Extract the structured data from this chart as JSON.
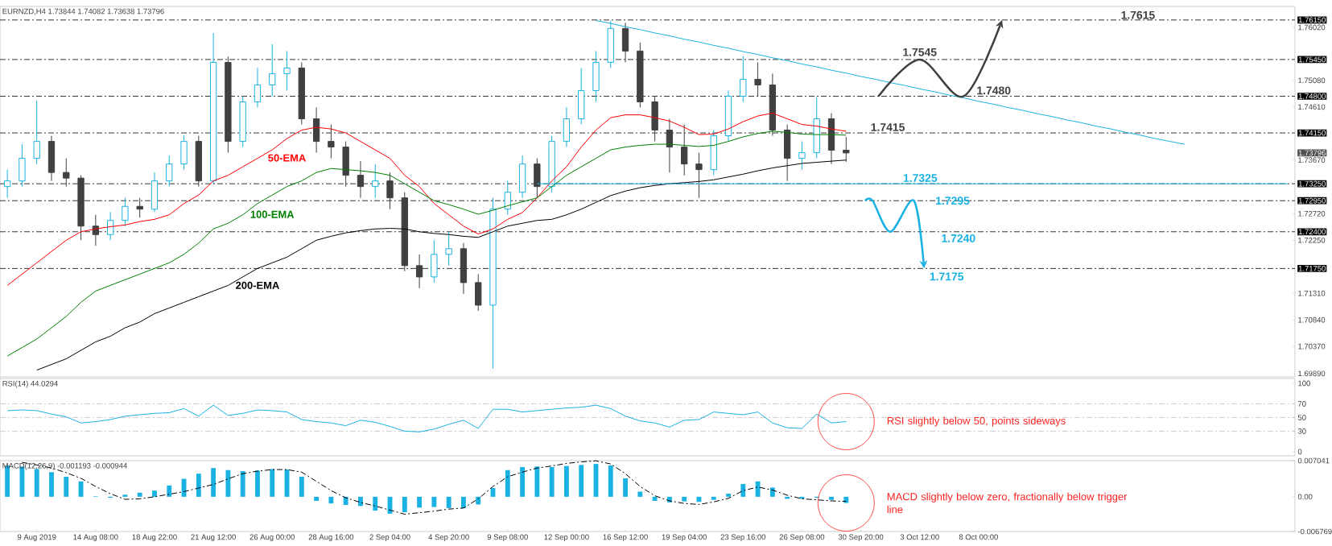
{
  "chart_data": [
    {
      "type": "candlestick",
      "title": "EURNZD,H4 1.73844 1.74082 1.73638 1.73796",
      "categories": [
        null,
        null,
        null,
        null,
        null,
        null,
        null,
        null,
        null,
        null,
        null,
        null,
        null,
        null,
        null,
        null,
        null,
        null,
        null,
        null,
        null,
        null,
        null,
        null,
        null,
        null,
        null,
        null,
        null,
        null,
        null,
        null,
        null,
        null,
        null,
        null,
        null,
        null,
        null,
        null,
        null,
        null,
        null,
        null,
        null,
        null,
        null,
        null,
        null,
        null,
        null,
        null,
        null,
        null,
        null,
        null,
        null,
        null,
        null,
        null,
        null,
        null,
        null,
        null,
        null,
        null,
        null,
        null,
        null,
        null,
        null,
        null,
        null,
        null,
        null,
        null,
        null,
        null,
        null,
        null,
        null,
        null,
        null,
        null,
        null,
        null,
        null,
        null
      ],
      "ohlc": [
        [
          1.732,
          1.735,
          1.73,
          1.733
        ],
        [
          1.733,
          1.7395,
          1.732,
          1.737
        ],
        [
          1.737,
          1.7472,
          1.736,
          1.74
        ],
        [
          1.74,
          1.741,
          1.733,
          1.7345
        ],
        [
          1.7345,
          1.737,
          1.732,
          1.7335
        ],
        [
          1.7335,
          1.734,
          1.7225,
          1.725
        ],
        [
          1.725,
          1.727,
          1.7215,
          1.7235
        ],
        [
          1.7235,
          1.7275,
          1.7225,
          1.726
        ],
        [
          1.726,
          1.73,
          1.725,
          1.7285
        ],
        [
          1.7285,
          1.73,
          1.7265,
          1.728
        ],
        [
          1.728,
          1.7345,
          1.7275,
          1.733
        ],
        [
          1.733,
          1.7375,
          1.732,
          1.736
        ],
        [
          1.736,
          1.7411,
          1.735,
          1.74
        ],
        [
          1.74,
          1.741,
          1.732,
          1.733
        ],
        [
          1.733,
          1.7592,
          1.7325,
          1.754
        ],
        [
          1.754,
          1.755,
          1.738,
          1.74
        ],
        [
          1.74,
          1.748,
          1.739,
          1.747
        ],
        [
          1.747,
          1.753,
          1.746,
          1.75
        ],
        [
          1.75,
          1.7572,
          1.748,
          1.752
        ],
        [
          1.752,
          1.756,
          1.749,
          1.753
        ],
        [
          1.753,
          1.754,
          1.743,
          1.744
        ],
        [
          1.744,
          1.746,
          1.738,
          1.74
        ],
        [
          1.74,
          1.743,
          1.737,
          1.739
        ],
        [
          1.739,
          1.74,
          1.732,
          1.734
        ],
        [
          1.734,
          1.7365,
          1.73,
          1.732
        ],
        [
          1.732,
          1.736,
          1.73,
          1.733
        ],
        [
          1.733,
          1.7345,
          1.728,
          1.73
        ],
        [
          1.73,
          1.731,
          1.717,
          1.718
        ],
        [
          1.718,
          1.72,
          1.714,
          1.716
        ],
        [
          1.716,
          1.7225,
          1.715,
          1.72
        ],
        [
          1.72,
          1.724,
          1.718,
          1.721
        ],
        [
          1.721,
          1.722,
          1.713,
          1.715
        ],
        [
          1.715,
          1.7165,
          1.71,
          1.711
        ],
        [
          1.711,
          1.73,
          1.6998,
          1.728
        ],
        [
          1.728,
          1.733,
          1.727,
          1.731
        ],
        [
          1.731,
          1.7375,
          1.73,
          1.736
        ],
        [
          1.736,
          1.737,
          1.73,
          1.732
        ],
        [
          1.732,
          1.741,
          1.731,
          1.74
        ],
        [
          1.74,
          1.746,
          1.739,
          1.744
        ],
        [
          1.744,
          1.753,
          1.743,
          1.749
        ],
        [
          1.749,
          1.756,
          1.747,
          1.754
        ],
        [
          1.754,
          1.7614,
          1.753,
          1.76
        ],
        [
          1.76,
          1.761,
          1.754,
          1.756
        ],
        [
          1.756,
          1.7575,
          1.746,
          1.747
        ],
        [
          1.747,
          1.748,
          1.74,
          1.742
        ],
        [
          1.742,
          1.744,
          1.7345,
          1.739
        ],
        [
          1.739,
          1.743,
          1.734,
          1.736
        ],
        [
          1.736,
          1.738,
          1.73,
          1.735
        ],
        [
          1.735,
          1.742,
          1.734,
          1.741
        ],
        [
          1.741,
          1.749,
          1.74,
          1.748
        ],
        [
          1.748,
          1.7551,
          1.747,
          1.751
        ],
        [
          1.751,
          1.754,
          1.748,
          1.75
        ],
        [
          1.75,
          1.752,
          1.741,
          1.742
        ],
        [
          1.742,
          1.743,
          1.733,
          1.737
        ],
        [
          1.737,
          1.74,
          1.735,
          1.738
        ],
        [
          1.738,
          1.7478,
          1.737,
          1.744
        ],
        [
          1.744,
          1.745,
          1.736,
          1.73844
        ],
        [
          1.73844,
          1.74082,
          1.73638,
          1.73796
        ],
        null,
        null,
        null,
        null,
        null,
        null,
        null,
        null,
        null,
        null,
        null,
        null,
        null,
        null,
        null,
        null,
        null,
        null,
        null,
        null,
        null,
        null,
        null,
        null,
        null,
        null,
        null,
        null,
        null,
        null
      ],
      "series": [
        {
          "name": "50-EMA",
          "type": "line",
          "color": "#ff0000",
          "values": [
            1.7145,
            1.7165,
            1.7185,
            1.7205,
            1.7225,
            1.724,
            1.7245,
            1.7249,
            1.7252,
            1.7258,
            1.7262,
            1.727,
            1.729,
            1.7305,
            1.733,
            1.734,
            1.7355,
            1.737,
            1.7385,
            1.7405,
            1.742,
            1.7425,
            1.7422,
            1.7415,
            1.74,
            1.7385,
            1.737,
            1.734,
            1.732,
            1.729,
            1.727,
            1.725,
            1.7236,
            1.7245,
            1.7262,
            1.7274,
            1.73,
            1.733,
            1.7355,
            1.739,
            1.742,
            1.7442,
            1.7447,
            1.7447,
            1.7442,
            1.7436,
            1.7425,
            1.7412,
            1.7413,
            1.7422,
            1.7435,
            1.7445,
            1.745,
            1.744,
            1.743,
            1.7427,
            1.7422,
            1.7418,
            null,
            null,
            null,
            null,
            null,
            null,
            null,
            null,
            null,
            null,
            null,
            null,
            null,
            null,
            null,
            null,
            null,
            null,
            null,
            null,
            null,
            null,
            null,
            null,
            null,
            null,
            null,
            null,
            null,
            null
          ]
        },
        {
          "name": "100-EMA",
          "type": "line",
          "color": "#008000",
          "values": [
            1.702,
            1.7035,
            1.705,
            1.707,
            1.709,
            1.7115,
            1.7135,
            1.7145,
            1.7155,
            1.7165,
            1.7175,
            1.7185,
            1.72,
            1.722,
            1.7245,
            1.7255,
            1.727,
            1.729,
            1.7305,
            1.732,
            1.733,
            1.7345,
            1.7352,
            1.735,
            1.7348,
            1.7345,
            1.734,
            1.7325,
            1.731,
            1.7295,
            1.7288,
            1.728,
            1.7271,
            1.7278,
            1.7286,
            1.7293,
            1.73,
            1.732,
            1.734,
            1.7355,
            1.737,
            1.7385,
            1.739,
            1.7393,
            1.7395,
            1.7395,
            1.7393,
            1.7391,
            1.7393,
            1.74,
            1.7408,
            1.7414,
            1.7418,
            1.7416,
            1.7413,
            1.7412,
            1.7412,
            1.7411,
            null,
            null,
            null,
            null,
            null,
            null,
            null,
            null,
            null,
            null,
            null,
            null,
            null,
            null,
            null,
            null,
            null,
            null,
            null,
            null,
            null,
            null,
            null,
            null,
            null,
            null,
            null,
            null,
            null,
            null
          ]
        },
        {
          "name": "200-EMA",
          "type": "line",
          "color": "#000000",
          "values": [
            null,
            null,
            1.6995,
            1.7005,
            1.7015,
            1.703,
            1.7045,
            1.7055,
            1.707,
            1.708,
            1.7095,
            1.7105,
            1.7115,
            1.7125,
            1.7135,
            1.7145,
            1.716,
            1.7175,
            1.7185,
            1.7195,
            1.721,
            1.7225,
            1.7232,
            1.7238,
            1.7242,
            1.7245,
            1.7246,
            1.7245,
            1.724,
            1.7237,
            1.7235,
            1.7232,
            1.723,
            1.724,
            1.725,
            1.7255,
            1.726,
            1.7262,
            1.727,
            1.728,
            1.7292,
            1.7304,
            1.7312,
            1.7318,
            1.7322,
            1.7325,
            1.7327,
            1.7329,
            1.7332,
            1.7337,
            1.7342,
            1.7348,
            1.7353,
            1.7357,
            1.7361,
            1.7363,
            1.7365,
            1.7367,
            null,
            null,
            null,
            null,
            null,
            null,
            null,
            null,
            null,
            null,
            null,
            null,
            null,
            null,
            null,
            null,
            null,
            null,
            null,
            null,
            null,
            null,
            null,
            null,
            null,
            null,
            null,
            null,
            null,
            null
          ]
        },
        {
          "type": "line",
          "color": "#1ab2e3",
          "values": [
            null,
            null,
            null,
            null,
            null,
            null,
            null,
            null,
            null,
            null,
            null,
            null,
            null,
            null,
            null,
            null,
            null,
            null,
            null,
            null,
            null,
            null,
            null,
            null,
            null,
            null,
            null,
            null,
            null,
            null,
            null,
            null,
            null,
            null,
            null,
            null,
            null,
            null,
            null,
            null,
            1.7614,
            1.7609,
            1.7603,
            1.7598,
            1.7592,
            1.7587,
            1.7581,
            1.7576,
            1.757,
            1.7565,
            1.7559,
            1.7554,
            1.7548,
            1.7543,
            1.7537,
            1.7532,
            1.7526,
            1.7521,
            1.7515,
            1.751,
            1.7504,
            1.7499,
            1.7493,
            1.7488,
            1.7482,
            1.7477,
            1.7471,
            1.7466,
            1.746,
            1.7455,
            1.7449,
            1.7444,
            1.7438,
            1.7433,
            1.7427,
            1.7422,
            1.7416,
            1.7411,
            1.7405,
            1.74,
            1.7395,
            null,
            null,
            null,
            null,
            null,
            null,
            null
          ]
        },
        {
          "type": "line",
          "color": "#1ab2e3",
          "values": [
            null,
            null,
            null,
            null,
            null,
            null,
            null,
            null,
            null,
            null,
            null,
            null,
            null,
            null,
            null,
            null,
            null,
            null,
            null,
            null,
            null,
            null,
            null,
            null,
            null,
            null,
            null,
            null,
            null,
            null,
            null,
            null,
            null,
            null,
            null,
            null,
            1.7325,
            1.7325,
            1.7325,
            1.7325,
            1.7325,
            1.7325,
            1.7325,
            1.7325,
            1.7325,
            1.7325,
            1.7325,
            1.7325,
            1.7325,
            1.7325,
            1.7325,
            1.7325,
            1.7325,
            1.7325,
            1.7325,
            1.7325,
            1.7325,
            1.7325,
            1.7325,
            1.7325,
            1.7325,
            1.7325,
            1.7325,
            1.7325,
            1.7325,
            1.7325,
            1.7325,
            1.7325,
            1.7325,
            1.7325,
            1.7325,
            1.7325,
            1.7325,
            1.7325,
            1.7325,
            1.7325,
            1.7325,
            1.7325,
            1.7325,
            1.7325,
            1.7325,
            1.7325,
            1.7325,
            1.7325,
            1.7325,
            1.7325,
            1.7325,
            1.7325
          ]
        }
      ],
      "ref_lines": [
        {
          "axis": "y",
          "value": 1.7615,
          "label": "1.76150",
          "color": "#000000",
          "line_style": "dashed"
        },
        {
          "axis": "y",
          "value": 1.7545,
          "label": "1.75450",
          "color": "#000000",
          "line_style": "dashed"
        },
        {
          "axis": "y",
          "value": 1.748,
          "label": "1.74800",
          "color": "#000000",
          "line_style": "dashed"
        },
        {
          "axis": "y",
          "value": 1.7415,
          "label": "1.74150",
          "color": "#000000",
          "line_style": "dashed"
        },
        {
          "axis": "y",
          "value": 1.7325,
          "label": "1.73250",
          "color": "#000000",
          "line_style": "dashed"
        },
        {
          "axis": "y",
          "value": 1.7295,
          "label": "1.72950",
          "color": "#000000",
          "line_style": "dashed"
        },
        {
          "axis": "y",
          "value": 1.724,
          "label": "1.72400",
          "color": "#000000",
          "line_style": "dashed"
        },
        {
          "axis": "y",
          "value": 1.7175,
          "label": "1.71750",
          "color": "#000000",
          "line_style": "dashed"
        }
      ],
      "annotations": [
        {
          "text": "1.7615",
          "y": 1.7615
        },
        {
          "text": "1.7545",
          "y": 1.7545
        },
        {
          "text": "1.7480",
          "y": 1.748
        },
        {
          "text": "1.7415",
          "y": 1.7415
        },
        {
          "text": "1.7325",
          "y": 1.7325
        },
        {
          "text": "1.7295",
          "y": 1.7295
        },
        {
          "text": "1.7240",
          "y": 1.724
        },
        {
          "text": "1.7175",
          "y": 1.7175
        },
        "1.73796"
      ],
      "ylim": [
        1.6983,
        1.7639
      ],
      "yticks": [
        {
          "value": 1.6989,
          "label": "1.69890"
        },
        {
          "value": 1.7037,
          "label": "1.70370"
        },
        {
          "value": 1.7084,
          "label": "1.70840"
        },
        {
          "value": 1.7131,
          "label": "1.71310"
        },
        {
          "value": 1.7225,
          "label": "1.72250"
        },
        {
          "value": 1.7272,
          "label": "1.72720"
        },
        {
          "value": 1.7367,
          "label": "1.73670"
        },
        {
          "value": 1.7461,
          "label": "1.74610"
        },
        {
          "value": 1.7508,
          "label": "1.75080"
        },
        {
          "value": 1.7602,
          "label": "1.76020"
        }
      ]
    },
    {
      "type": "line",
      "title": "RSI(14) 44.0294",
      "color": "#1ab2e3",
      "categories": [
        null,
        null,
        null,
        null,
        null,
        null,
        null,
        null,
        null,
        null,
        null,
        null,
        null,
        null,
        null,
        null,
        null,
        null,
        null,
        null,
        null,
        null,
        null,
        null,
        null,
        null,
        null,
        null,
        null,
        null,
        null,
        null,
        null,
        null,
        null,
        null,
        null,
        null,
        null,
        null,
        null,
        null,
        null,
        null,
        null,
        null,
        null,
        null,
        null,
        null,
        null,
        null,
        null,
        null,
        null,
        null,
        null,
        null,
        null,
        null,
        null,
        null,
        null,
        null,
        null,
        null,
        null,
        null,
        null,
        null,
        null,
        null,
        null,
        null,
        null,
        null,
        null,
        null,
        null,
        null,
        null,
        null,
        null,
        null,
        null,
        null,
        null,
        null
      ],
      "values": [
        60,
        61,
        60,
        55,
        51,
        42,
        44,
        47,
        52,
        54,
        56,
        57,
        63,
        52,
        68,
        53,
        56,
        61,
        60,
        58,
        47,
        44,
        42,
        38,
        46,
        43,
        37,
        30,
        29,
        33,
        40,
        46,
        34,
        62,
        62,
        58,
        60,
        62,
        64,
        65,
        68,
        63,
        52,
        45,
        42,
        36,
        46,
        47,
        58,
        56,
        54,
        58,
        42,
        35,
        34,
        55,
        42,
        44,
        null,
        null,
        null,
        null,
        null,
        null,
        null,
        null,
        null,
        null,
        null,
        null,
        null,
        null,
        null,
        null,
        null,
        null,
        null,
        null,
        null,
        null,
        null,
        null,
        null,
        null,
        null,
        null,
        null,
        null
      ],
      "ref_lines": [
        {
          "axis": "y",
          "value": 70,
          "color": "#c0c0c0",
          "line_style": "dashed"
        },
        {
          "axis": "y",
          "value": 50,
          "color": "#c0c0c0",
          "line_style": "dashed"
        },
        {
          "axis": "y",
          "value": 30,
          "color": "#c0c0c0",
          "line_style": "dashed"
        }
      ],
      "annotations": [
        "RSI slightly below 50, points sideways"
      ],
      "ylim": [
        -6,
        107
      ],
      "yticks": [
        0,
        30,
        50,
        70,
        100
      ]
    },
    {
      "type": "bar",
      "title": "MACD(12,26,9) -0.001193 -0.000944",
      "categories": [
        null,
        null,
        "9 Aug 2019",
        null,
        null,
        null,
        "14 Aug 08:00",
        null,
        null,
        null,
        "18 Aug 22:00",
        null,
        null,
        null,
        "21 Aug 12:00",
        null,
        null,
        null,
        "26 Aug 00:00",
        null,
        null,
        null,
        "28 Aug 16:00",
        null,
        null,
        null,
        "2 Sep 04:00",
        null,
        null,
        null,
        "4 Sep 20:00",
        null,
        null,
        null,
        "9 Sep 08:00",
        null,
        null,
        null,
        "12 Sep 00:00",
        null,
        null,
        null,
        "16 Sep 12:00",
        null,
        null,
        null,
        "19 Sep 04:00",
        null,
        null,
        null,
        "23 Sep 16:00",
        null,
        null,
        null,
        "26 Sep 08:00",
        null,
        null,
        null,
        "30 Sep 20:00",
        null,
        null,
        null,
        "3 Oct 12:00",
        null,
        null,
        null,
        "8 Oct 00:00",
        null,
        null,
        null,
        null,
        null,
        null,
        null,
        null,
        null,
        null,
        null,
        null,
        null,
        null,
        null,
        null,
        null,
        null,
        null,
        null,
        null
      ],
      "series": [
        {
          "type": "bar",
          "color": "#1ab2e3",
          "values": [
            0.0061,
            0.0059,
            0.0054,
            0.0048,
            0.0039,
            0.003,
            0.0001,
            -0.0002,
            0.0004,
            0.0008,
            0.0012,
            0.0022,
            0.0035,
            0.0045,
            0.0056,
            0.0052,
            0.005,
            0.0051,
            0.0054,
            0.0053,
            0.0039,
            -0.0008,
            -0.0013,
            -0.0016,
            -0.0018,
            -0.0027,
            -0.0033,
            -0.003,
            -0.0021,
            -0.002,
            -0.0022,
            -0.0022,
            -0.0015,
            0.0017,
            0.0052,
            0.0058,
            0.0059,
            0.0058,
            0.006,
            0.0062,
            0.0064,
            0.0061,
            0.0036,
            0.001,
            -0.0008,
            -0.0011,
            -0.0009,
            -0.001,
            -0.0006,
            0.0006,
            0.0025,
            0.003,
            0.0018,
            -0.0004,
            -0.0004,
            -0.0002,
            -0.0006,
            -0.0012,
            null,
            null,
            null,
            null,
            null,
            null,
            null,
            null,
            null,
            null,
            null,
            null,
            null,
            null,
            null,
            null,
            null,
            null,
            null,
            null,
            null,
            null,
            null,
            null,
            null,
            null,
            null,
            null,
            null,
            null
          ]
        },
        {
          "type": "line",
          "color": "#000000",
          "line_style": "dashed",
          "values": [
            null,
            0.0067,
            0.0062,
            0.0056,
            0.0047,
            0.0036,
            0.002,
            0.0006,
            -0.0005,
            -0.0004,
            0.0,
            0.0005,
            0.001,
            0.0017,
            0.0024,
            0.0035,
            0.0045,
            0.005,
            0.0053,
            0.0053,
            0.0048,
            0.003,
            0.0012,
            -0.0002,
            -0.0011,
            -0.0018,
            -0.0026,
            -0.0034,
            -0.0031,
            -0.0028,
            -0.0024,
            -0.0022,
            -0.0004,
            0.002,
            0.0039,
            0.0048,
            0.0056,
            0.006,
            0.0065,
            0.0068,
            0.007,
            0.0064,
            0.0045,
            0.002,
            0.0002,
            -0.0008,
            -0.0013,
            -0.0015,
            -0.001,
            -0.0003,
            0.0012,
            0.0019,
            0.0013,
            0.0003,
            -0.0004,
            -0.0006,
            -0.0008,
            -0.0009,
            null,
            null,
            null,
            null,
            null,
            null,
            null,
            null,
            null,
            null,
            null,
            null,
            null,
            null,
            null,
            null,
            null,
            null,
            null,
            null,
            null,
            null,
            null,
            null,
            null,
            null,
            null,
            null,
            null,
            null
          ]
        }
      ],
      "annotations": [
        "MACD slightly below zero, fractionally below trigger line"
      ],
      "ylim": [
        -0.006769,
        0.007041
      ],
      "yticks": [
        -0.006769,
        {
          "value": 0,
          "label": "0.00"
        },
        0.007041
      ]
    }
  ]
}
